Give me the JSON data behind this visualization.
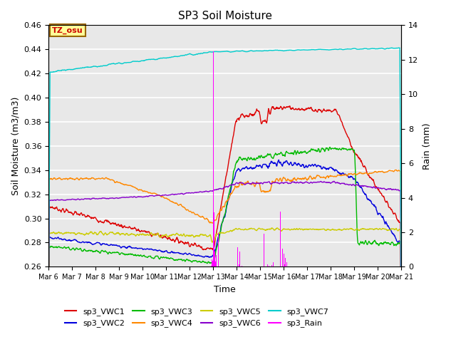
{
  "title": "SP3 Soil Moisture",
  "ylabel_left": "Soil Moisture (m3/m3)",
  "ylabel_right": "Rain (mm)",
  "xlabel": "Time",
  "ylim_left": [
    0.26,
    0.46
  ],
  "ylim_right": [
    0,
    14
  ],
  "background_color": "#e8e8e8",
  "grid_color": "white",
  "tz_label": "TZ_osu",
  "tz_color": "#cc0000",
  "tz_bg": "#ffff99",
  "tz_border": "#996600",
  "n_points": 960,
  "colors": {
    "VWC1": "#dd0000",
    "VWC2": "#0000dd",
    "VWC3": "#00bb00",
    "VWC4": "#ff8800",
    "VWC5": "#cccc00",
    "VWC6": "#8800cc",
    "VWC7": "#00cccc",
    "Rain": "#ff00ff"
  },
  "legend_labels": [
    "sp3_VWC1",
    "sp3_VWC2",
    "sp3_VWC3",
    "sp3_VWC4",
    "sp3_VWC5",
    "sp3_VWC6",
    "sp3_VWC7",
    "sp3_Rain"
  ],
  "xtick_labels": [
    "Mar 6",
    "Mar 7",
    "Mar 8",
    "Mar 9",
    "Mar 10",
    "Mar 11",
    "Mar 12",
    "Mar 13",
    "Mar 14",
    "Mar 15",
    "Mar 16",
    "Mar 17",
    "Mar 18",
    "Mar 19",
    "Mar 20",
    "Mar 21"
  ]
}
